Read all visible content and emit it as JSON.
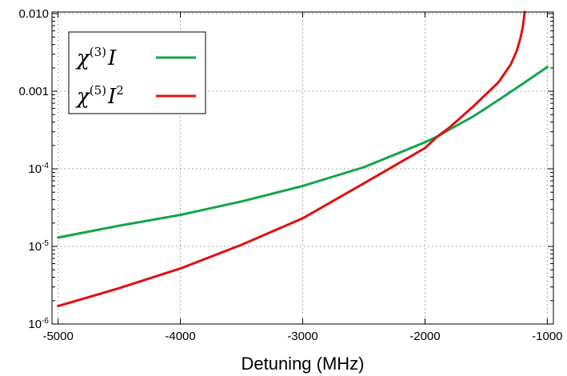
{
  "chart_data": {
    "type": "line",
    "title": "",
    "xlabel": "Detuning (MHz)",
    "ylabel": "",
    "xlim": [
      -5050,
      -950
    ],
    "ylim": [
      1e-06,
      0.0105
    ],
    "yscale": "log",
    "grid": true,
    "legend_position": "top-left",
    "x_ticks": [
      {
        "value": -5000,
        "label": "-5000"
      },
      {
        "value": -4000,
        "label": "-4000"
      },
      {
        "value": -3000,
        "label": "-3000"
      },
      {
        "value": -2000,
        "label": "-2000"
      },
      {
        "value": -1000,
        "label": "-1000"
      }
    ],
    "y_ticks": [
      {
        "value": 1e-06,
        "base": "10",
        "exp": "-6",
        "label": ""
      },
      {
        "value": 1e-05,
        "base": "10",
        "exp": "-5",
        "label": ""
      },
      {
        "value": 0.0001,
        "base": "10",
        "exp": "-4",
        "label": ""
      },
      {
        "value": 0.001,
        "base": "",
        "exp": "",
        "label": "0.001"
      },
      {
        "value": 0.01,
        "base": "",
        "exp": "",
        "label": "0.010"
      }
    ],
    "series": [
      {
        "name": "χ(3)I",
        "legend_base": "χ",
        "legend_sup": "(3)",
        "legend_tail": "I",
        "legend_tail_sup": "",
        "color": "#16a34a",
        "x": [
          -5000,
          -4500,
          -4000,
          -3500,
          -3000,
          -2500,
          -2000,
          -1900,
          -1800,
          -1600,
          -1400,
          -1200,
          -1000
        ],
        "y": [
          1.3e-05,
          1.85e-05,
          2.55e-05,
          3.8e-05,
          6e-05,
          0.000105,
          0.00022,
          0.00026,
          0.00032,
          0.00048,
          0.00077,
          0.00125,
          0.00205
        ]
      },
      {
        "name": "χ(5)I2",
        "legend_base": "χ",
        "legend_sup": "(5)",
        "legend_tail": "I",
        "legend_tail_sup": "2",
        "color": "#e01010",
        "x": [
          -5000,
          -4500,
          -4000,
          -3500,
          -3000,
          -2500,
          -2000,
          -1900,
          -1800,
          -1600,
          -1400,
          -1300,
          -1250,
          -1220,
          -1200,
          -1185
        ],
        "y": [
          1.7e-06,
          2.9e-06,
          5.2e-06,
          1.05e-05,
          2.3e-05,
          6.5e-05,
          0.000185,
          0.00026,
          0.00034,
          0.00065,
          0.0013,
          0.0022,
          0.0033,
          0.0048,
          0.0068,
          0.0105
        ]
      }
    ]
  }
}
